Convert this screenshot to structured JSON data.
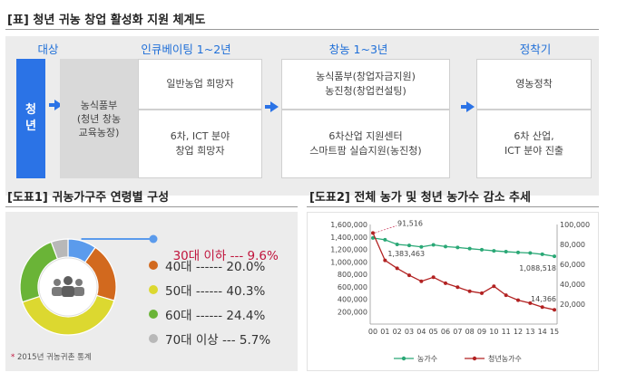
{
  "top": {
    "title": "[표] 청년 귀농 창업 활성화 지원 체계도",
    "stages": [
      "대상",
      "인큐베이팅 1~2년",
      "창농 1~3년",
      "정착기"
    ],
    "target_lines": [
      "청",
      "년"
    ],
    "incubation_org_lines": [
      "농식품부",
      "(청년 창농",
      "교육농장)"
    ],
    "incubation_top": "일반농업 희망자",
    "incubation_bottom_lines": [
      "6차, ICT 분야",
      "창업 희망자"
    ],
    "startup_top_lines": [
      "농식품부(창업자금지원)",
      "농진청(창업컨설팅)"
    ],
    "startup_bottom_lines": [
      "6차산업 지원센터",
      "스마트팜 실습지원(농진청)"
    ],
    "settle_top": "영농정착",
    "settle_bottom_lines": [
      "6차 산업,",
      "ICT 분야 진출"
    ]
  },
  "pie": {
    "title": "[도표1] 귀농가구주 연령별 구성",
    "source": "2015년 귀농귀촌 통계",
    "source_mark": "*",
    "highlight_color": "#c0143c",
    "legend_lines": [
      "30대 이하 --- 9.6%",
      "40대 ------ 20.0%",
      "50대 ------ 40.3%",
      "60대 ------ 24.4%",
      "70대 이상 --- 5.7%"
    ]
  },
  "line": {
    "title": "[도표2] 전체 농가 및 청년 농가수 감소 추세",
    "legend": [
      "농가수",
      "청년농가수"
    ],
    "annotations": [
      "91,516",
      "1,383,463",
      "1,088,518",
      "14,366"
    ]
  },
  "chart_data": [
    {
      "type": "pie",
      "title": "[도표1] 귀농가구주 연령별 구성",
      "categories": [
        "30대 이하",
        "40대",
        "50대",
        "60대",
        "70대 이상"
      ],
      "values": [
        9.6,
        20.0,
        40.3,
        24.4,
        5.7
      ],
      "colors": [
        "#5b9bec",
        "#d2691e",
        "#dcd830",
        "#6ab437",
        "#b8b8b8"
      ]
    },
    {
      "type": "line",
      "title": "[도표2] 전체 농가 및 청년 농가수 감소 추세",
      "x": [
        "00",
        "01",
        "02",
        "03",
        "04",
        "05",
        "06",
        "07",
        "08",
        "09",
        "10",
        "11",
        "12",
        "13",
        "14",
        "15"
      ],
      "y_left_lim": [
        0,
        1600000
      ],
      "y_left_ticks": [
        200000,
        400000,
        600000,
        800000,
        1000000,
        1200000,
        1400000,
        1600000
      ],
      "y_left_tick_labels": [
        "200,000",
        "400,000",
        "600,000",
        "800,000",
        "1,000,000",
        "1,200,000",
        "1,400,000",
        "1,600,000"
      ],
      "y_right_lim": [
        0,
        100000
      ],
      "y_right_ticks": [
        20000,
        40000,
        60000,
        80000,
        100000
      ],
      "y_right_tick_labels": [
        "20,000",
        "40,000",
        "60,000",
        "80,000",
        "100,000"
      ],
      "series": [
        {
          "name": "농가수",
          "axis": "left",
          "color": "#2aa876",
          "values": [
            1383463,
            1354000,
            1280000,
            1264000,
            1240000,
            1273000,
            1245000,
            1231000,
            1212000,
            1195000,
            1177000,
            1163000,
            1151000,
            1142000,
            1121000,
            1088518
          ]
        },
        {
          "name": "청년농가수",
          "axis": "right",
          "color": "#b22222",
          "values": [
            91516,
            64000,
            56000,
            49000,
            43000,
            47000,
            41000,
            37000,
            33000,
            31000,
            38000,
            29000,
            24000,
            21000,
            17000,
            14366
          ]
        }
      ]
    }
  ]
}
